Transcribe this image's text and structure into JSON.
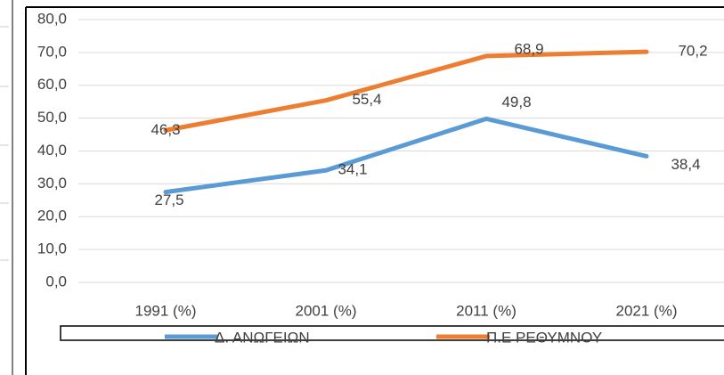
{
  "chart_data": {
    "type": "line",
    "categories": [
      "1991 (%)",
      "2001 (%)",
      "2011 (%)",
      "2021 (%)"
    ],
    "series": [
      {
        "name": "Δ. ΑΝΩΓΕΙΩΝ",
        "color": "#5b9bd5",
        "values": [
          27.5,
          34.1,
          49.8,
          38.4
        ],
        "value_labels": [
          "27,5",
          "34,1",
          "49,8",
          "38,4"
        ]
      },
      {
        "name": "Π.Ε ΡΕΘΥΜΝΟΥ",
        "color": "#ed7d31",
        "values": [
          46.3,
          55.4,
          68.9,
          70.2
        ],
        "value_labels": [
          "46,3",
          "55,4",
          "68,9",
          "70,2"
        ]
      }
    ],
    "ylim": [
      0,
      80
    ],
    "yticks": [
      {
        "value": 0,
        "label": "0,0"
      },
      {
        "value": 10,
        "label": "10,0"
      },
      {
        "value": 20,
        "label": "20,0"
      },
      {
        "value": 30,
        "label": "30,0"
      },
      {
        "value": 40,
        "label": "40,0"
      },
      {
        "value": 50,
        "label": "50,0"
      },
      {
        "value": 60,
        "label": "60,0"
      },
      {
        "value": 70,
        "label": "70,0"
      },
      {
        "value": 80,
        "label": "80,0"
      }
    ],
    "grid": true,
    "legend": "bottom"
  }
}
